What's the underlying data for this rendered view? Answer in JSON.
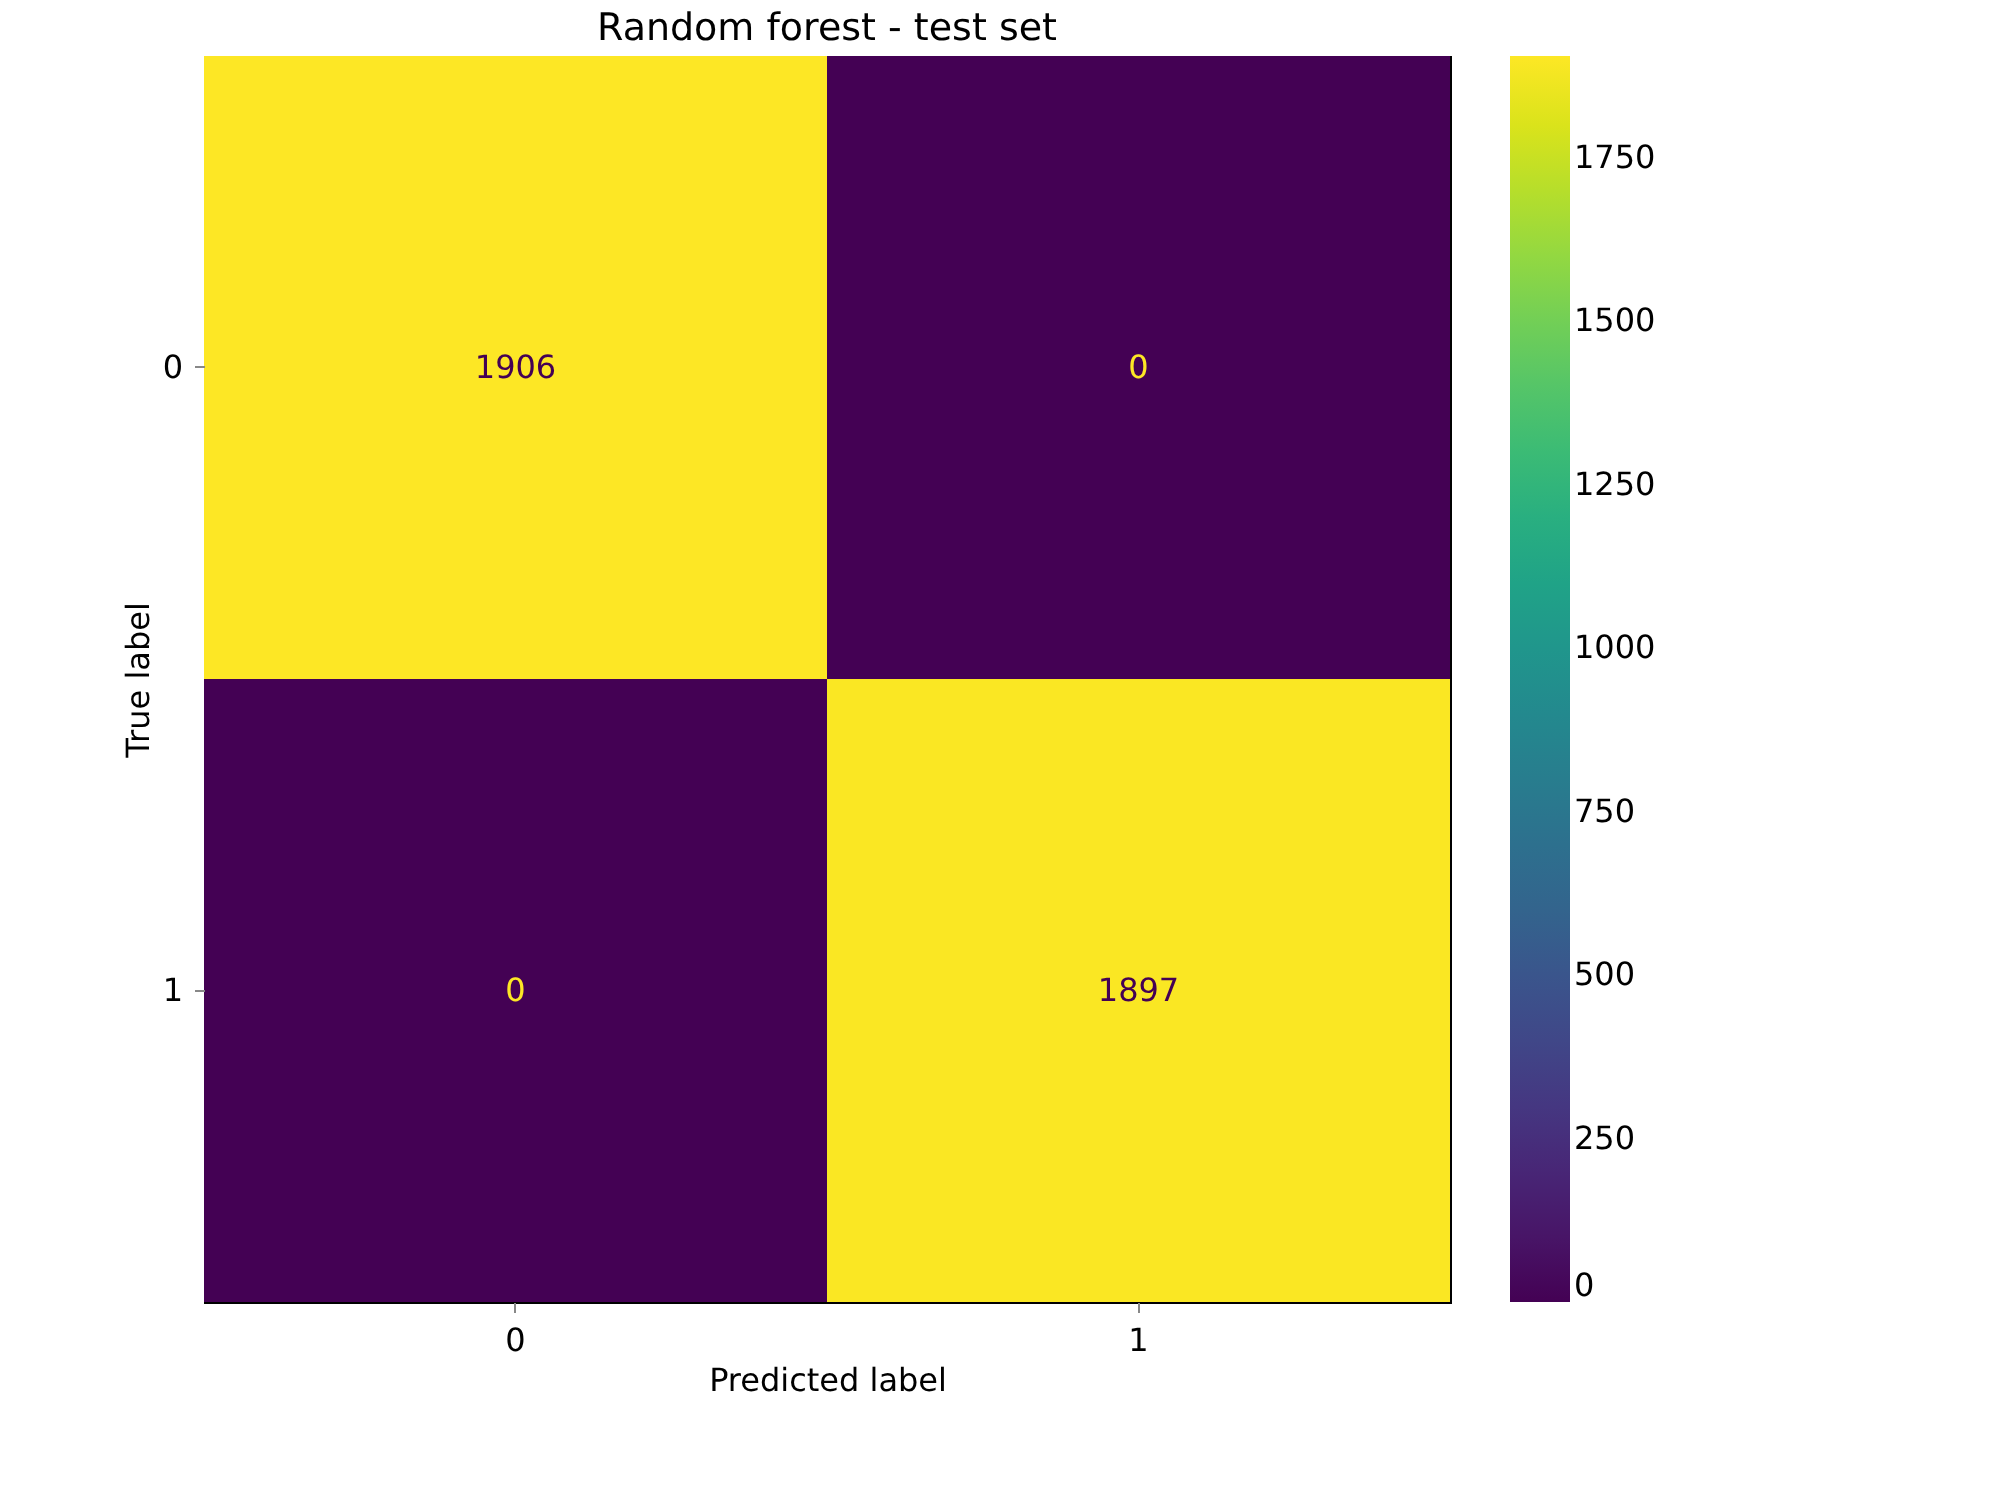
{
  "chart_data": {
    "type": "heatmap",
    "title": "Random forest - test set",
    "xlabel": "Predicted label",
    "ylabel": "True label",
    "categories": [
      "0",
      "1"
    ],
    "y_categories": [
      "0",
      "1"
    ],
    "cells": [
      [
        1906,
        0
      ],
      [
        0,
        1897
      ]
    ],
    "clim": [
      0,
      1906
    ],
    "cticks": [
      0,
      250,
      500,
      750,
      1000,
      1250,
      1500,
      1750
    ],
    "data_labels": true,
    "grid": false
  }
}
